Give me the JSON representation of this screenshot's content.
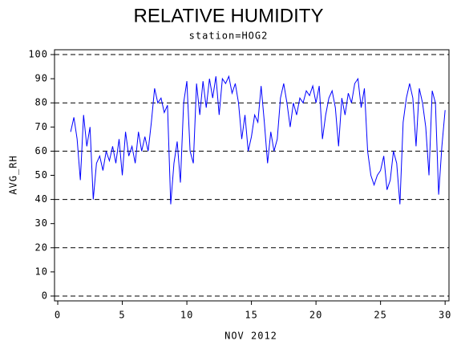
{
  "chart_data": {
    "type": "line",
    "title": "RELATIVE HUMIDITY",
    "subtitle": "station=HOG2",
    "x_label": "NOV 2012",
    "y_label": "AVG_RH",
    "color": "#0000ff",
    "x": [
      1,
      1.25,
      1.5,
      1.75,
      2,
      2.25,
      2.5,
      2.75,
      3,
      3.25,
      3.5,
      3.75,
      4,
      4.25,
      4.5,
      4.75,
      5,
      5.25,
      5.5,
      5.75,
      6,
      6.25,
      6.5,
      6.75,
      7,
      7.25,
      7.5,
      7.75,
      8,
      8.25,
      8.5,
      8.75,
      9,
      9.25,
      9.5,
      9.75,
      10,
      10.25,
      10.5,
      10.75,
      11,
      11.25,
      11.5,
      11.75,
      12,
      12.25,
      12.5,
      12.75,
      13,
      13.25,
      13.5,
      13.75,
      14,
      14.25,
      14.5,
      14.75,
      15,
      15.25,
      15.5,
      15.75,
      16,
      16.25,
      16.5,
      16.75,
      17,
      17.25,
      17.5,
      17.75,
      18,
      18.25,
      18.5,
      18.75,
      19,
      19.25,
      19.5,
      19.75,
      20,
      20.25,
      20.5,
      20.75,
      21,
      21.25,
      21.5,
      21.75,
      22,
      22.25,
      22.5,
      22.75,
      23,
      23.25,
      23.5,
      23.75,
      24,
      24.25,
      24.5,
      24.75,
      25,
      25.25,
      25.5,
      25.75,
      26,
      26.25,
      26.5,
      26.75,
      27,
      27.25,
      27.5,
      27.75,
      28,
      28.25,
      28.5,
      28.75,
      29,
      29.25,
      29.5,
      29.75,
      30
    ],
    "values": [
      68,
      74,
      65,
      48,
      75,
      62,
      70,
      40,
      55,
      58,
      52,
      60,
      56,
      62,
      55,
      65,
      50,
      68,
      58,
      62,
      55,
      68,
      60,
      66,
      60,
      72,
      86,
      80,
      82,
      76,
      79,
      38,
      55,
      64,
      47,
      80,
      89,
      60,
      55,
      88,
      75,
      89,
      78,
      90,
      82,
      91,
      75,
      90,
      88,
      91,
      84,
      88,
      80,
      65,
      75,
      60,
      66,
      75,
      72,
      87,
      72,
      55,
      68,
      60,
      65,
      82,
      88,
      80,
      70,
      80,
      75,
      82,
      80,
      85,
      83,
      87,
      80,
      87,
      65,
      75,
      82,
      85,
      78,
      62,
      82,
      75,
      84,
      80,
      88,
      90,
      78,
      86,
      60,
      50,
      46,
      50,
      52,
      58,
      44,
      48,
      60,
      55,
      38,
      72,
      82,
      88,
      82,
      62,
      86,
      80,
      70,
      50,
      85,
      80,
      42,
      62,
      77
    ],
    "xlim": [
      -0.25,
      30.3
    ],
    "ylim": [
      -2,
      102
    ],
    "xticks": [
      0,
      5,
      10,
      15,
      20,
      25,
      30
    ],
    "yticks": [
      0,
      10,
      20,
      30,
      40,
      50,
      60,
      70,
      80,
      90,
      100
    ],
    "grid_lines": [
      0,
      20,
      40,
      60,
      80,
      100
    ]
  }
}
